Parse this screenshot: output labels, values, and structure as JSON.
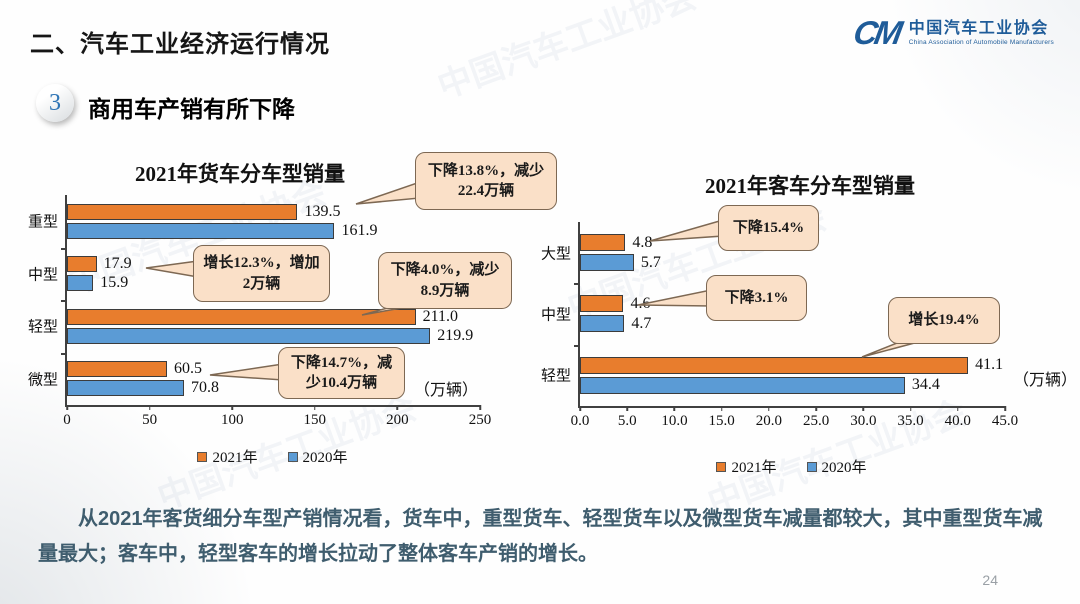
{
  "header": {
    "section_title": "二、汽车工业经济运行情况",
    "badge_number": "3",
    "slide_title": "商用车产销有所下降"
  },
  "logo": {
    "mark": "CM",
    "name_cn": "中国汽车工业协会",
    "name_en": "China Association of Automobile Manufacturers"
  },
  "watermark": "中国汽车工业协会",
  "colors": {
    "series_2021": "#E87D2D",
    "series_2020": "#5B9BD5",
    "callout_fill": "#FAE0C8",
    "callout_border": "#7D6853",
    "summary_text": "#3F5D6E",
    "logo_blue": "#1F5C99"
  },
  "chart_data": [
    {
      "type": "bar",
      "orientation": "horizontal",
      "title": "2021年货车分车型销量",
      "categories": [
        "重型",
        "中型",
        "轻型",
        "微型"
      ],
      "series": [
        {
          "name": "2021年",
          "color": "#E87D2D",
          "values": [
            139.5,
            17.9,
            211.0,
            60.5
          ]
        },
        {
          "name": "2020年",
          "color": "#5B9BD5",
          "values": [
            161.9,
            15.9,
            219.9,
            70.8
          ]
        }
      ],
      "xlim": [
        0,
        250
      ],
      "xticks": [
        "0",
        "50",
        "100",
        "150",
        "200",
        "250"
      ],
      "unit_label": "（万辆）",
      "legend_position": "bottom",
      "grid": false,
      "annotations": [
        "下降13.8%，减少22.4万辆",
        "增长12.3%，增加2万辆",
        "下降4.0%，减少8.9万辆",
        "下降14.7%，减少10.4万辆"
      ]
    },
    {
      "type": "bar",
      "orientation": "horizontal",
      "title": "2021年客车分车型销量",
      "categories": [
        "大型",
        "中型",
        "轻型"
      ],
      "series": [
        {
          "name": "2021年",
          "color": "#E87D2D",
          "values": [
            4.8,
            4.6,
            41.1
          ]
        },
        {
          "name": "2020年",
          "color": "#5B9BD5",
          "values": [
            5.7,
            4.7,
            34.4
          ]
        }
      ],
      "xlim": [
        0,
        45
      ],
      "xticks": [
        "0.0",
        "5.0",
        "10.0",
        "15.0",
        "20.0",
        "25.0",
        "30.0",
        "35.0",
        "40.0",
        "45.0"
      ],
      "unit_label": "（万辆）",
      "legend_position": "bottom",
      "grid": false,
      "annotations": [
        "下降15.4%",
        "下降3.1%",
        "增长19.4%"
      ]
    }
  ],
  "summary": "从2021年客货细分车型产销情况看，货车中，重型货车、轻型货车以及微型货车减量都较大，其中重型货车减量最大；客车中，轻型客车的增长拉动了整体客车产销的增长。",
  "page_number": "24"
}
